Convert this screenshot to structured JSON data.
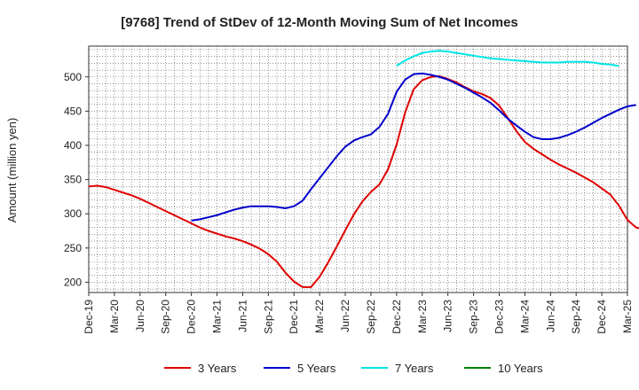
{
  "chart_data": {
    "type": "line",
    "title": "[9768]  Trend of StDev of 12-Month Moving Sum of Net Incomes",
    "ylabel": "Amount (million yen)",
    "xlabel": "",
    "ylim": [
      185,
      545
    ],
    "yticks": [
      200,
      250,
      300,
      350,
      400,
      450,
      500
    ],
    "x_tick_labels": [
      "Dec-19",
      "Mar-20",
      "Jun-20",
      "Sep-20",
      "Dec-20",
      "Mar-21",
      "Jun-21",
      "Sep-21",
      "Dec-21",
      "Mar-22",
      "Jun-22",
      "Sep-22",
      "Dec-22",
      "Mar-23",
      "Jun-23",
      "Sep-23",
      "Dec-23",
      "Mar-24",
      "Jun-24",
      "Sep-24",
      "Dec-24",
      "Mar-25"
    ],
    "x_start": "2019-12",
    "grid": true,
    "legend_position": "bottom",
    "series": [
      {
        "name": "3 Years",
        "color": "#e00000",
        "start": "2019-12",
        "values": [
          340,
          341,
          339,
          335,
          331,
          327,
          322,
          316,
          310,
          304,
          298,
          292,
          286,
          280,
          275,
          271,
          267,
          264,
          260,
          255,
          249,
          241,
          230,
          214,
          201,
          193,
          193,
          208,
          229,
          252,
          276,
          299,
          318,
          332,
          343,
          365,
          401,
          448,
          482,
          495,
          500,
          501,
          497,
          492,
          485,
          479,
          475,
          469,
          458,
          440,
          421,
          405,
          395,
          387,
          379,
          372,
          366,
          360,
          353,
          346,
          337,
          328,
          312,
          291,
          280,
          277,
          280
        ]
      },
      {
        "name": "5 Years",
        "color": "#0000cc",
        "start": "2020-12",
        "values": [
          290,
          292,
          295,
          298,
          302,
          306,
          309,
          311,
          311,
          311,
          310,
          308,
          311,
          319,
          336,
          352,
          368,
          384,
          398,
          407,
          412,
          416,
          427,
          446,
          478,
          496,
          504,
          505,
          503,
          500,
          496,
          490,
          484,
          477,
          470,
          462,
          451,
          439,
          429,
          420,
          412,
          409,
          409,
          411,
          415,
          420,
          426,
          433,
          440,
          446,
          452,
          457,
          459
        ]
      },
      {
        "name": "7 Years",
        "color": "#00e5e5",
        "start": "2022-12",
        "values": [
          516,
          524,
          530,
          535,
          537,
          538,
          537,
          535,
          533,
          531,
          529,
          527,
          526,
          525,
          524,
          523,
          522,
          521,
          521,
          521,
          522,
          522,
          522,
          521,
          519,
          518,
          516
        ]
      },
      {
        "name": "10 Years",
        "color": "#008000",
        "start": "2022-12",
        "values": []
      }
    ]
  }
}
